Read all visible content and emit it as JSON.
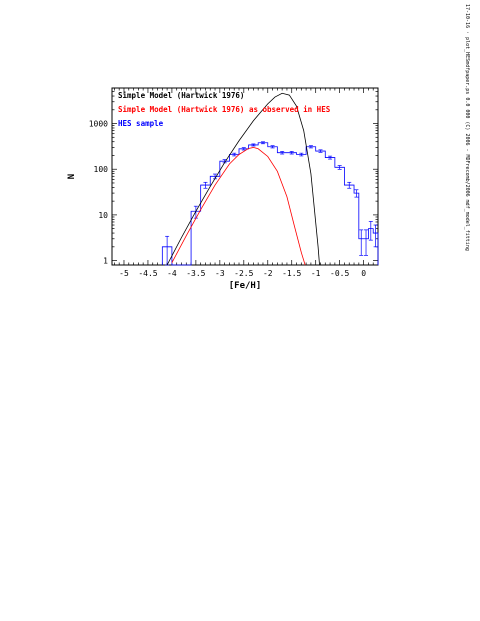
{
  "side_note": "17-10-16 · plot_HESmdfpaper.ps 0.0 000 (C) 2006 - MDFrecomb/2006 mdf_model_fitting",
  "chart_data": {
    "type": "histogram",
    "xlabel": "[Fe/H]",
    "ylabel": "N",
    "xlim": [
      -5.25,
      0.3
    ],
    "ylim": [
      0.8,
      6000
    ],
    "yscale": "log",
    "xticks": [
      "-5",
      "-4.5",
      "-4",
      "-3.5",
      "-3",
      "-2.5",
      "-2",
      "-1.5",
      "-1",
      "-0.5",
      "0"
    ],
    "yticks": [
      "1",
      "10",
      "100",
      "1000"
    ],
    "legend": [
      {
        "label": "Simple Model (Hartwick 1976)",
        "color": "#000000"
      },
      {
        "label": "Simple Model (Hartwick 1976) as observed in HES",
        "color": "#ff0000"
      },
      {
        "label": "HES sample",
        "color": "#0000ff"
      }
    ],
    "histogram": {
      "name": "HES sample",
      "color": "#0000ff",
      "bin_edges": [
        -4.2,
        -4.0,
        -3.6,
        -3.4,
        -3.2,
        -3.0,
        -2.8,
        -2.6,
        -2.4,
        -2.2,
        -2.0,
        -1.8,
        -1.6,
        -1.4,
        -1.2,
        -1.0,
        -0.8,
        -0.6,
        -0.4,
        -0.2,
        -0.1,
        0.0,
        0.1,
        0.2,
        0.3
      ],
      "counts": [
        2,
        0,
        12,
        45,
        70,
        150,
        210,
        280,
        340,
        380,
        310,
        230,
        230,
        210,
        310,
        250,
        180,
        110,
        45,
        30,
        3,
        3,
        5,
        4
      ],
      "errors": [
        1.4,
        0,
        3.5,
        6.7,
        8.4,
        12,
        14.5,
        17,
        18,
        19,
        17.6,
        15,
        15,
        14.5,
        17.6,
        15.8,
        13.4,
        10.5,
        6.7,
        5.5,
        1.7,
        1.7,
        2.2,
        2
      ]
    },
    "series": [
      {
        "name": "Simple Model (Hartwick 1976)",
        "color": "#000000",
        "x": [
          -4.1,
          -3.8,
          -3.5,
          -3.2,
          -2.9,
          -2.6,
          -2.3,
          -2.0,
          -1.85,
          -1.7,
          -1.55,
          -1.4,
          -1.25,
          -1.1,
          -0.95,
          -0.92
        ],
        "y": [
          0.8,
          3.2,
          12,
          42,
          140,
          420,
          1150,
          2700,
          3800,
          4600,
          4200,
          2400,
          700,
          80,
          2,
          0.8
        ]
      },
      {
        "name": "Simple Model (Hartwick 1976) as observed in HES",
        "color": "#ff0000",
        "x": [
          -4.0,
          -3.7,
          -3.4,
          -3.1,
          -2.8,
          -2.6,
          -2.4,
          -2.3,
          -2.2,
          -2.0,
          -1.8,
          -1.6,
          -1.45,
          -1.3,
          -1.22
        ],
        "y": [
          0.9,
          3.5,
          13,
          45,
          130,
          210,
          285,
          300,
          280,
          190,
          90,
          25,
          6,
          1.5,
          0.8
        ]
      }
    ]
  }
}
